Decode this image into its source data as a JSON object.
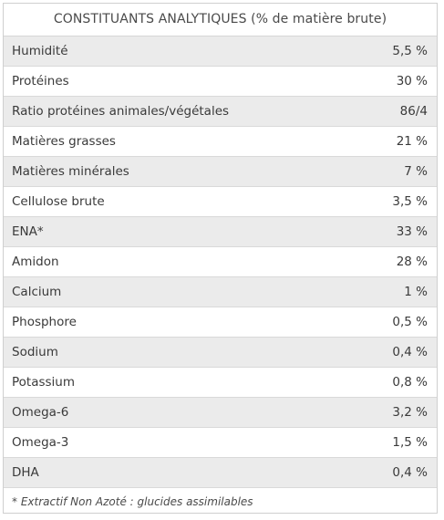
{
  "table": {
    "title": "CONSTITUANTS ANALYTIQUES (% de matière brute)",
    "rows": [
      {
        "label": "Humidité",
        "value": "5,5 %"
      },
      {
        "label": "Protéines",
        "value": "30 %"
      },
      {
        "label": "Ratio protéines animales/végétales",
        "value": "86/4"
      },
      {
        "label": "Matières grasses",
        "value": "21 %"
      },
      {
        "label": "Matières minérales",
        "value": "7 %"
      },
      {
        "label": "Cellulose brute",
        "value": "3,5 %"
      },
      {
        "label": "ENA*",
        "value": "33 %"
      },
      {
        "label": "Amidon",
        "value": "28 %"
      },
      {
        "label": "Calcium",
        "value": "1 %"
      },
      {
        "label": "Phosphore",
        "value": "0,5 %"
      },
      {
        "label": "Sodium",
        "value": "0,4 %"
      },
      {
        "label": "Potassium",
        "value": "0,8 %"
      },
      {
        "label": "Omega-6",
        "value": "3,2 %"
      },
      {
        "label": "Omega-3",
        "value": "1,5 %"
      },
      {
        "label": "DHA",
        "value": "0,4 %"
      }
    ],
    "footnote": "* Extractif Non Azoté : glucides assimilables"
  },
  "colors": {
    "shaded_row": "#ebebeb",
    "plain_row": "#ffffff",
    "border": "#cfcfcf",
    "text": "#3a3a3a"
  }
}
